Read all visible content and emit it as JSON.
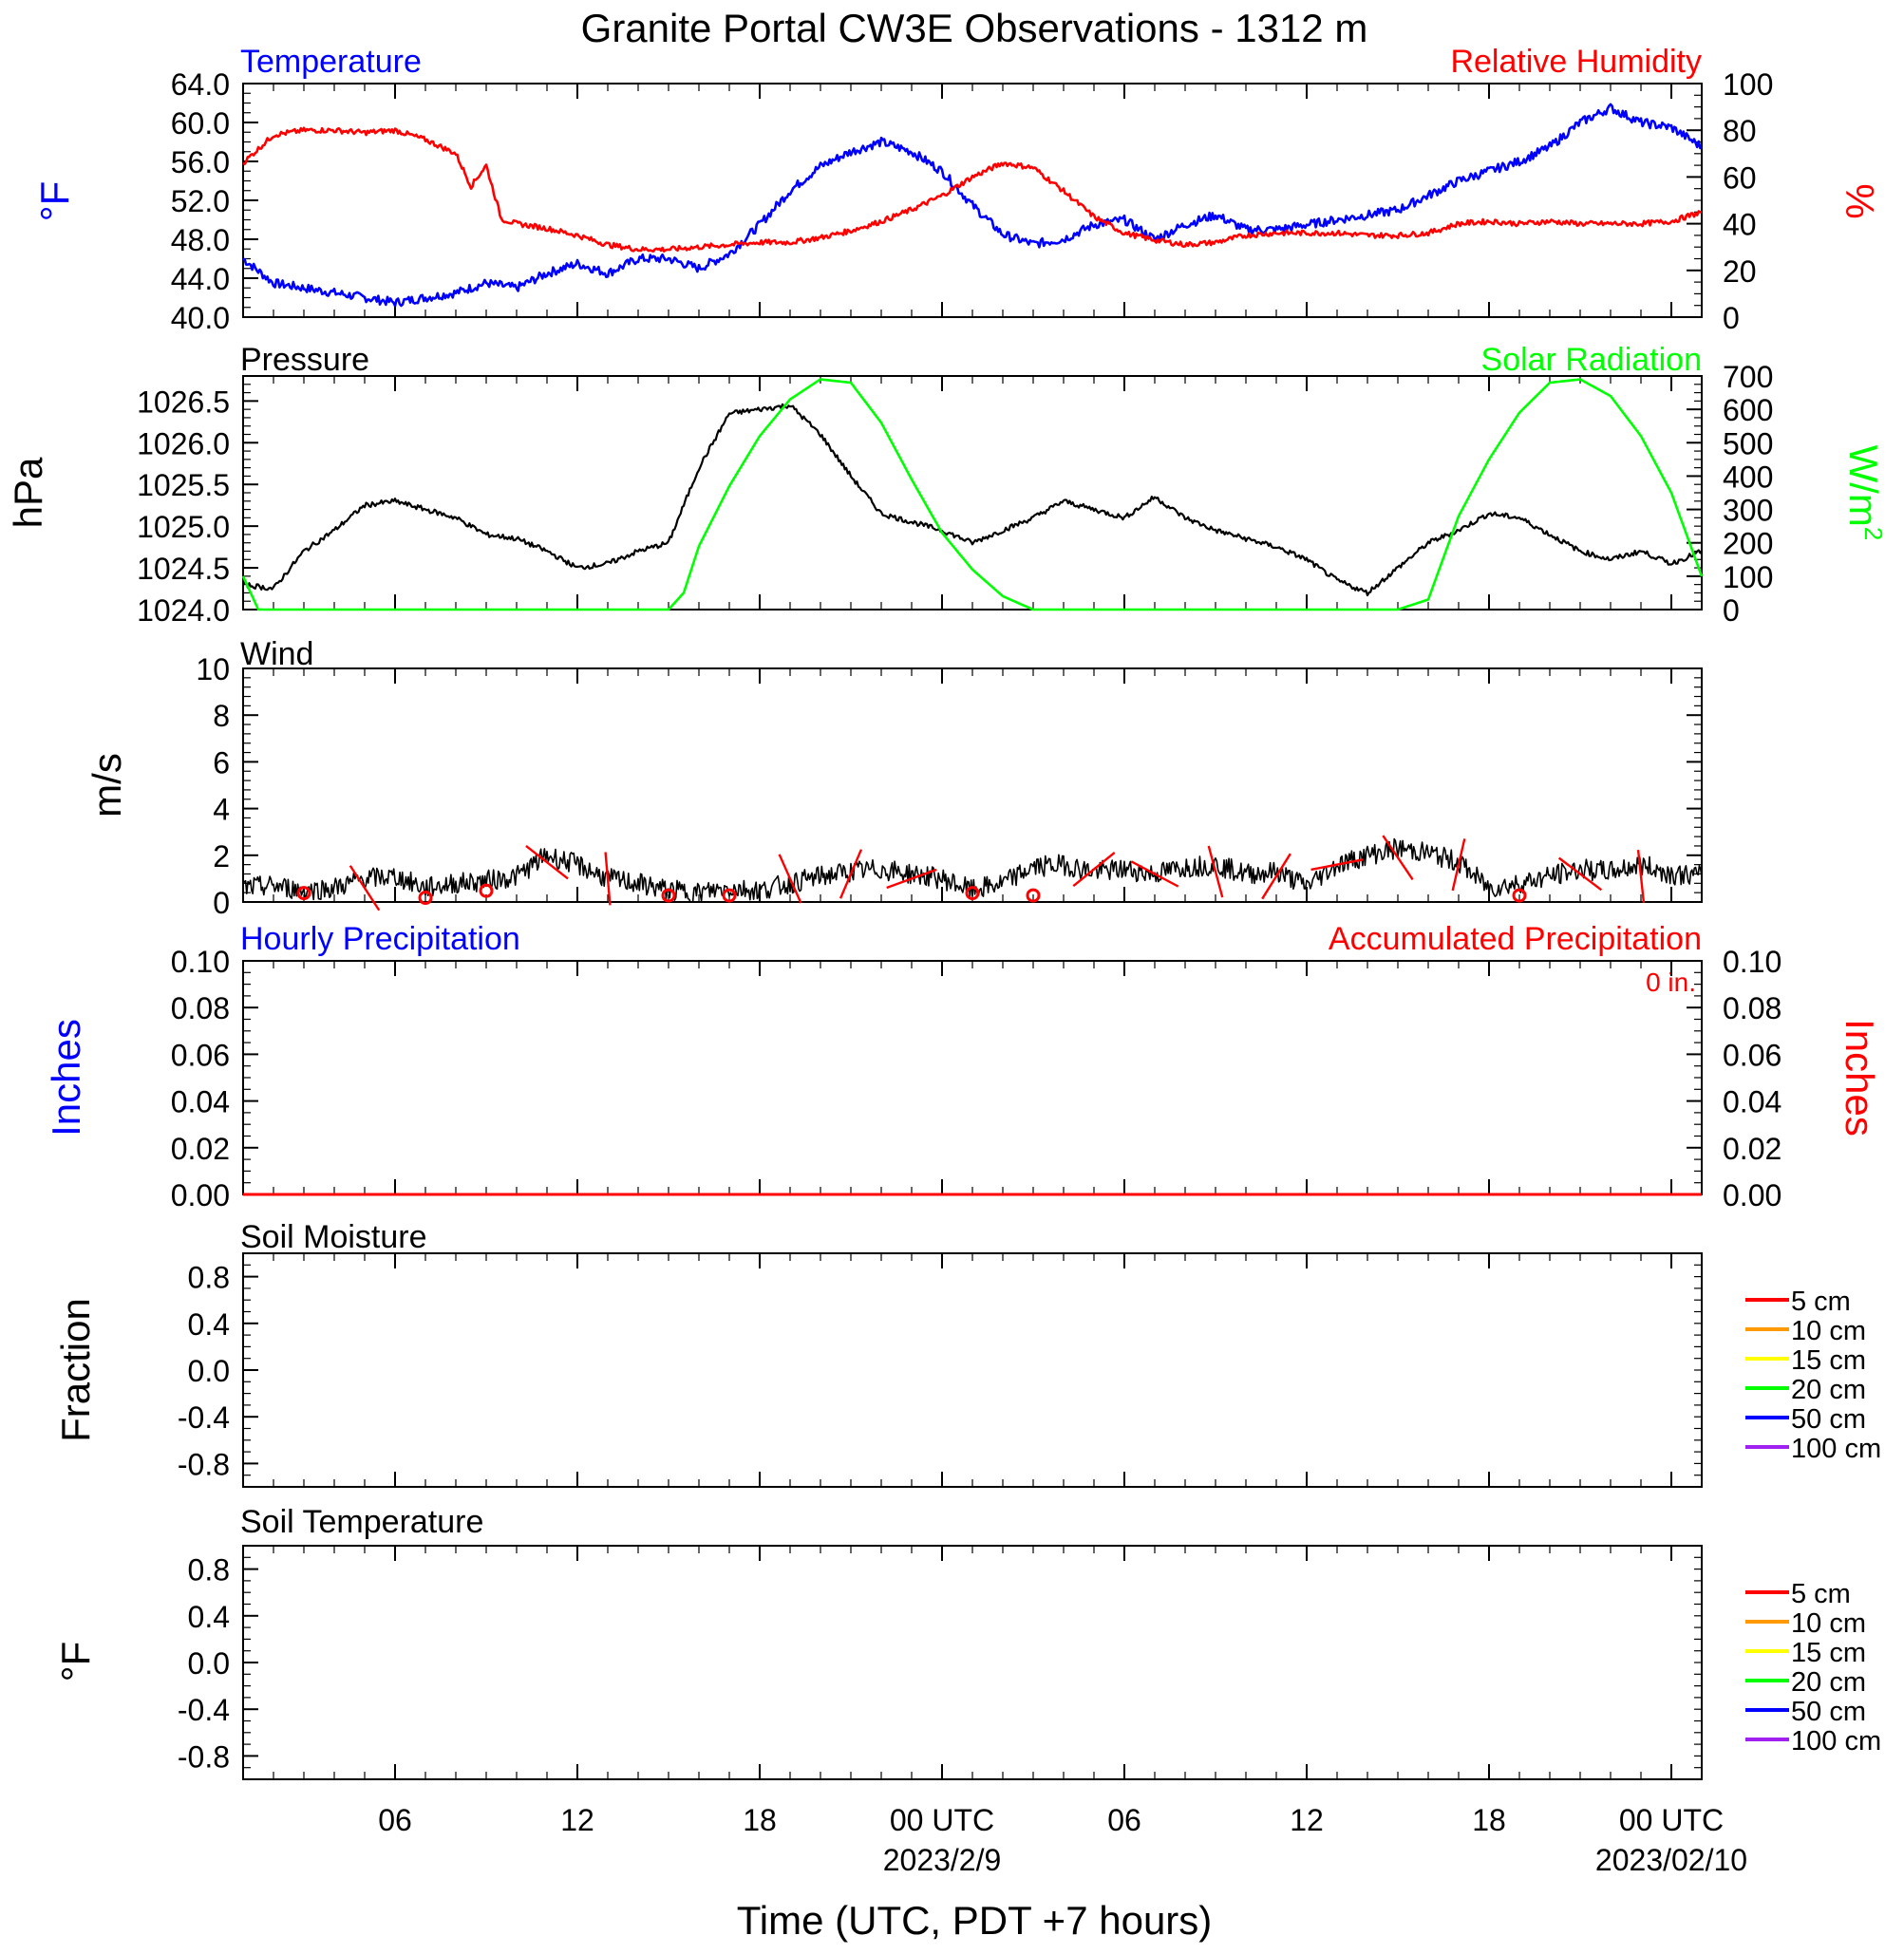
{
  "title": "Granite Portal CW3E Observations - 1312 m",
  "x_axis": {
    "label": "Time (UTC, PDT +7 hours)",
    "start_hour": 1,
    "end_hour": 49,
    "ticks": [
      {
        "hour": 6,
        "label": "06",
        "date": ""
      },
      {
        "hour": 12,
        "label": "12",
        "date": ""
      },
      {
        "hour": 18,
        "label": "18",
        "date": ""
      },
      {
        "hour": 24,
        "label": "00 UTC",
        "date": "2023/2/9"
      },
      {
        "hour": 30,
        "label": "06",
        "date": ""
      },
      {
        "hour": 36,
        "label": "12",
        "date": ""
      },
      {
        "hour": 42,
        "label": "18",
        "date": ""
      },
      {
        "hour": 48,
        "label": "00 UTC",
        "date": "2023/02/10"
      }
    ]
  },
  "panels": {
    "temperature": {
      "left_title": "Temperature",
      "right_title": "Relative Humidity",
      "left_unit": "°F",
      "right_unit": "%",
      "left_ticks": [
        "40.0",
        "44.0",
        "48.0",
        "52.0",
        "56.0",
        "60.0",
        "64.0"
      ],
      "right_ticks": [
        "0",
        "20",
        "40",
        "60",
        "80",
        "100"
      ]
    },
    "pressure": {
      "left_title": "Pressure",
      "right_title": "Solar Radiation",
      "left_unit": "hPa",
      "right_unit": "W/m²",
      "left_ticks": [
        "1024.0",
        "1024.5",
        "1025.0",
        "1025.5",
        "1026.0",
        "1026.5"
      ],
      "right_ticks": [
        "0",
        "100",
        "200",
        "300",
        "400",
        "500",
        "600",
        "700"
      ]
    },
    "wind": {
      "left_title": "Wind",
      "left_unit": "m/s",
      "left_ticks": [
        "0",
        "2",
        "4",
        "6",
        "8",
        "10"
      ]
    },
    "precip": {
      "left_title": "Hourly Precipitation",
      "right_title": "Accumulated Precipitation",
      "total_label": "0 in.",
      "left_unit": "Inches",
      "right_unit": "Inches",
      "left_ticks": [
        "0.00",
        "0.02",
        "0.04",
        "0.06",
        "0.08",
        "0.10"
      ],
      "right_ticks": [
        "0.00",
        "0.02",
        "0.04",
        "0.06",
        "0.08",
        "0.10"
      ]
    },
    "soil_moisture": {
      "left_title": "Soil Moisture",
      "left_unit": "Fraction",
      "left_ticks": [
        "-0.8",
        "-0.4",
        "0.0",
        "0.4",
        "0.8"
      ]
    },
    "soil_temperature": {
      "left_title": "Soil Temperature",
      "left_unit": "°F",
      "left_ticks": [
        "-0.8",
        "-0.4",
        "0.0",
        "0.4",
        "0.8"
      ]
    }
  },
  "soil_legend": [
    {
      "label": "5 cm",
      "color": "#ff0000"
    },
    {
      "label": "10 cm",
      "color": "#ff9900"
    },
    {
      "label": "15 cm",
      "color": "#ffff00"
    },
    {
      "label": "20 cm",
      "color": "#00ff00"
    },
    {
      "label": "50 cm",
      "color": "#0000ff"
    },
    {
      "label": "100 cm",
      "color": "#a020f0"
    }
  ],
  "colors": {
    "temperature": "#0000ff",
    "humidity": "#ff0000",
    "pressure": "#000000",
    "solar": "#00ff00",
    "wind_speed": "#000000",
    "wind_barb": "#ff0000",
    "hourly_precip": "#0000ff",
    "accum_precip": "#ff0000"
  },
  "chart_data": [
    {
      "type": "line",
      "panel": "temperature",
      "xlabel": "Time (UTC, PDT +7 hours)",
      "ylabel": "°F",
      "ylim": [
        40,
        64
      ],
      "y2label": "%",
      "y2lim": [
        0,
        100
      ],
      "series": [
        {
          "name": "Temperature",
          "axis": "left",
          "color": "#0000ff",
          "x": [
            1,
            2,
            3,
            4,
            5,
            6,
            7,
            8,
            9,
            10,
            11,
            12,
            13,
            14,
            15,
            16,
            17,
            18,
            19,
            20,
            21,
            22,
            23,
            24,
            25,
            26,
            27,
            28,
            29,
            30,
            31,
            32,
            33,
            34,
            35,
            36,
            37,
            38,
            39,
            40,
            41,
            42,
            43,
            44,
            45,
            46,
            47,
            48,
            49
          ],
          "y": [
            46.0,
            43.5,
            43.0,
            42.5,
            42.0,
            41.5,
            42.0,
            42.5,
            43.5,
            43.0,
            44.5,
            45.5,
            44.5,
            46.0,
            46.0,
            45.0,
            46.5,
            49.5,
            53.0,
            55.5,
            57.0,
            58.0,
            57.0,
            55.0,
            51.5,
            48.5,
            47.5,
            48.0,
            49.5,
            50.0,
            48.0,
            49.5,
            50.5,
            49.0,
            49.0,
            49.5,
            50.0,
            50.5,
            51.0,
            52.5,
            54.0,
            55.0,
            56.0,
            57.5,
            60.0,
            61.5,
            60.0,
            59.5,
            57.5
          ]
        },
        {
          "name": "Relative Humidity",
          "axis": "right",
          "color": "#ff0000",
          "x": [
            1,
            2,
            3,
            4,
            5,
            6,
            7,
            8,
            8.5,
            9,
            9.5,
            10,
            11,
            12,
            13,
            14,
            15,
            16,
            17,
            18,
            19,
            20,
            21,
            22,
            23,
            24,
            25,
            26,
            27,
            28,
            29,
            30,
            31,
            32,
            33,
            34,
            35,
            36,
            37,
            38,
            39,
            40,
            41,
            42,
            43,
            44,
            45,
            46,
            47,
            48,
            49
          ],
          "y": [
            66,
            78,
            80,
            80,
            79,
            80,
            76,
            70,
            56,
            65,
            42,
            40,
            38,
            35,
            31,
            29,
            29,
            30,
            31,
            32,
            32,
            34,
            37,
            41,
            46,
            52,
            60,
            66,
            64,
            54,
            43,
            36,
            33,
            31,
            32,
            35,
            36,
            36,
            36,
            35,
            35,
            36,
            40,
            41,
            40,
            41,
            40,
            40,
            40,
            41,
            45
          ]
        }
      ]
    },
    {
      "type": "line",
      "panel": "pressure",
      "ylabel": "hPa",
      "ylim": [
        1024.0,
        1026.8
      ],
      "y2label": "W/m²",
      "y2lim": [
        0,
        700
      ],
      "series": [
        {
          "name": "Pressure",
          "axis": "left",
          "color": "#000000",
          "x": [
            1,
            2,
            3,
            4,
            5,
            6,
            7,
            8,
            9,
            10,
            11,
            12,
            13,
            14,
            15,
            16,
            17,
            18,
            19,
            20,
            21,
            22,
            23,
            24,
            25,
            26,
            27,
            28,
            29,
            30,
            31,
            32,
            33,
            34,
            35,
            36,
            37,
            38,
            39,
            40,
            41,
            42,
            43,
            44,
            45,
            46,
            47,
            48,
            49
          ],
          "y": [
            1024.3,
            1024.25,
            1024.7,
            1024.95,
            1025.25,
            1025.3,
            1025.2,
            1025.1,
            1024.9,
            1024.85,
            1024.7,
            1024.5,
            1024.55,
            1024.7,
            1024.8,
            1025.7,
            1026.35,
            1026.4,
            1026.45,
            1026.1,
            1025.6,
            1025.15,
            1025.05,
            1024.95,
            1024.8,
            1024.95,
            1025.1,
            1025.3,
            1025.2,
            1025.1,
            1025.35,
            1025.1,
            1024.95,
            1024.85,
            1024.75,
            1024.6,
            1024.35,
            1024.2,
            1024.5,
            1024.8,
            1024.95,
            1025.15,
            1025.1,
            1024.9,
            1024.7,
            1024.6,
            1024.7,
            1024.55,
            1024.7
          ]
        },
        {
          "name": "Solar Radiation",
          "axis": "right",
          "color": "#00ff00",
          "x": [
            1,
            1.5,
            2,
            15,
            15.5,
            16,
            17,
            18,
            19,
            20,
            21,
            22,
            23,
            24,
            25,
            26,
            27,
            28,
            39,
            40,
            41,
            42,
            43,
            44,
            45,
            46,
            47,
            48,
            49
          ],
          "y": [
            100,
            0,
            0,
            0,
            50,
            190,
            370,
            520,
            630,
            690,
            680,
            560,
            390,
            230,
            120,
            40,
            0,
            0,
            0,
            30,
            280,
            450,
            590,
            680,
            690,
            640,
            520,
            350,
            100
          ]
        }
      ]
    },
    {
      "type": "line",
      "panel": "wind",
      "ylabel": "m/s",
      "ylim": [
        0,
        10
      ],
      "series": [
        {
          "name": "Wind",
          "color": "#000000",
          "x": [
            1,
            2,
            3,
            4,
            5,
            6,
            7,
            8,
            9,
            10,
            11,
            12,
            13,
            14,
            15,
            16,
            17,
            18,
            19,
            20,
            21,
            22,
            23,
            24,
            25,
            26,
            27,
            28,
            29,
            30,
            31,
            32,
            33,
            34,
            35,
            36,
            37,
            38,
            39,
            40,
            41,
            42,
            43,
            44,
            45,
            46,
            47,
            48,
            49
          ],
          "y": [
            0.6,
            0.7,
            0.5,
            0.6,
            1.0,
            1.1,
            0.6,
            0.8,
            0.9,
            1.1,
            2.0,
            1.6,
            1.0,
            0.8,
            0.5,
            0.4,
            0.6,
            0.5,
            0.8,
            1.1,
            1.3,
            1.4,
            1.2,
            1.0,
            0.5,
            0.8,
            1.5,
            1.6,
            1.3,
            1.4,
            1.2,
            1.5,
            1.6,
            1.2,
            1.3,
            0.7,
            1.6,
            2.0,
            2.3,
            2.1,
            1.7,
            0.6,
            0.8,
            1.1,
            1.4,
            1.3,
            1.6,
            1.2,
            1.1
          ]
        },
        {
          "name": "Wind barbs",
          "color": "#ff0000",
          "x": [
            3,
            5,
            7,
            9,
            11,
            13,
            15,
            17,
            19,
            21,
            23,
            25,
            27,
            29,
            31,
            33,
            35,
            37,
            39,
            41,
            43,
            45,
            47
          ],
          "y": [
            0.3,
            0.6,
            0.1,
            0.4,
            1.7,
            1.0,
            0.2,
            0.2,
            1.0,
            1.2,
            1.0,
            0.3,
            0.2,
            1.4,
            1.2,
            1.3,
            1.1,
            1.6,
            1.9,
            1.6,
            0.2,
            1.2,
            1.1
          ]
        }
      ]
    },
    {
      "type": "line",
      "panel": "precip",
      "ylabel": "Inches",
      "ylim": [
        0,
        0.1
      ],
      "y2label": "Inches",
      "y2lim": [
        0,
        0.1
      ],
      "series": [
        {
          "name": "Hourly Precipitation",
          "axis": "left",
          "color": "#0000ff",
          "x": [
            1,
            49
          ],
          "y": [
            0,
            0
          ]
        },
        {
          "name": "Accumulated Precipitation",
          "axis": "right",
          "color": "#ff0000",
          "x": [
            1,
            49
          ],
          "y": [
            0,
            0
          ]
        }
      ]
    },
    {
      "type": "line",
      "panel": "soil_moisture",
      "ylabel": "Fraction",
      "ylim": [
        -1.0,
        1.0
      ],
      "series": []
    },
    {
      "type": "line",
      "panel": "soil_temperature",
      "ylabel": "°F",
      "ylim": [
        -1.0,
        1.0
      ],
      "series": []
    }
  ]
}
